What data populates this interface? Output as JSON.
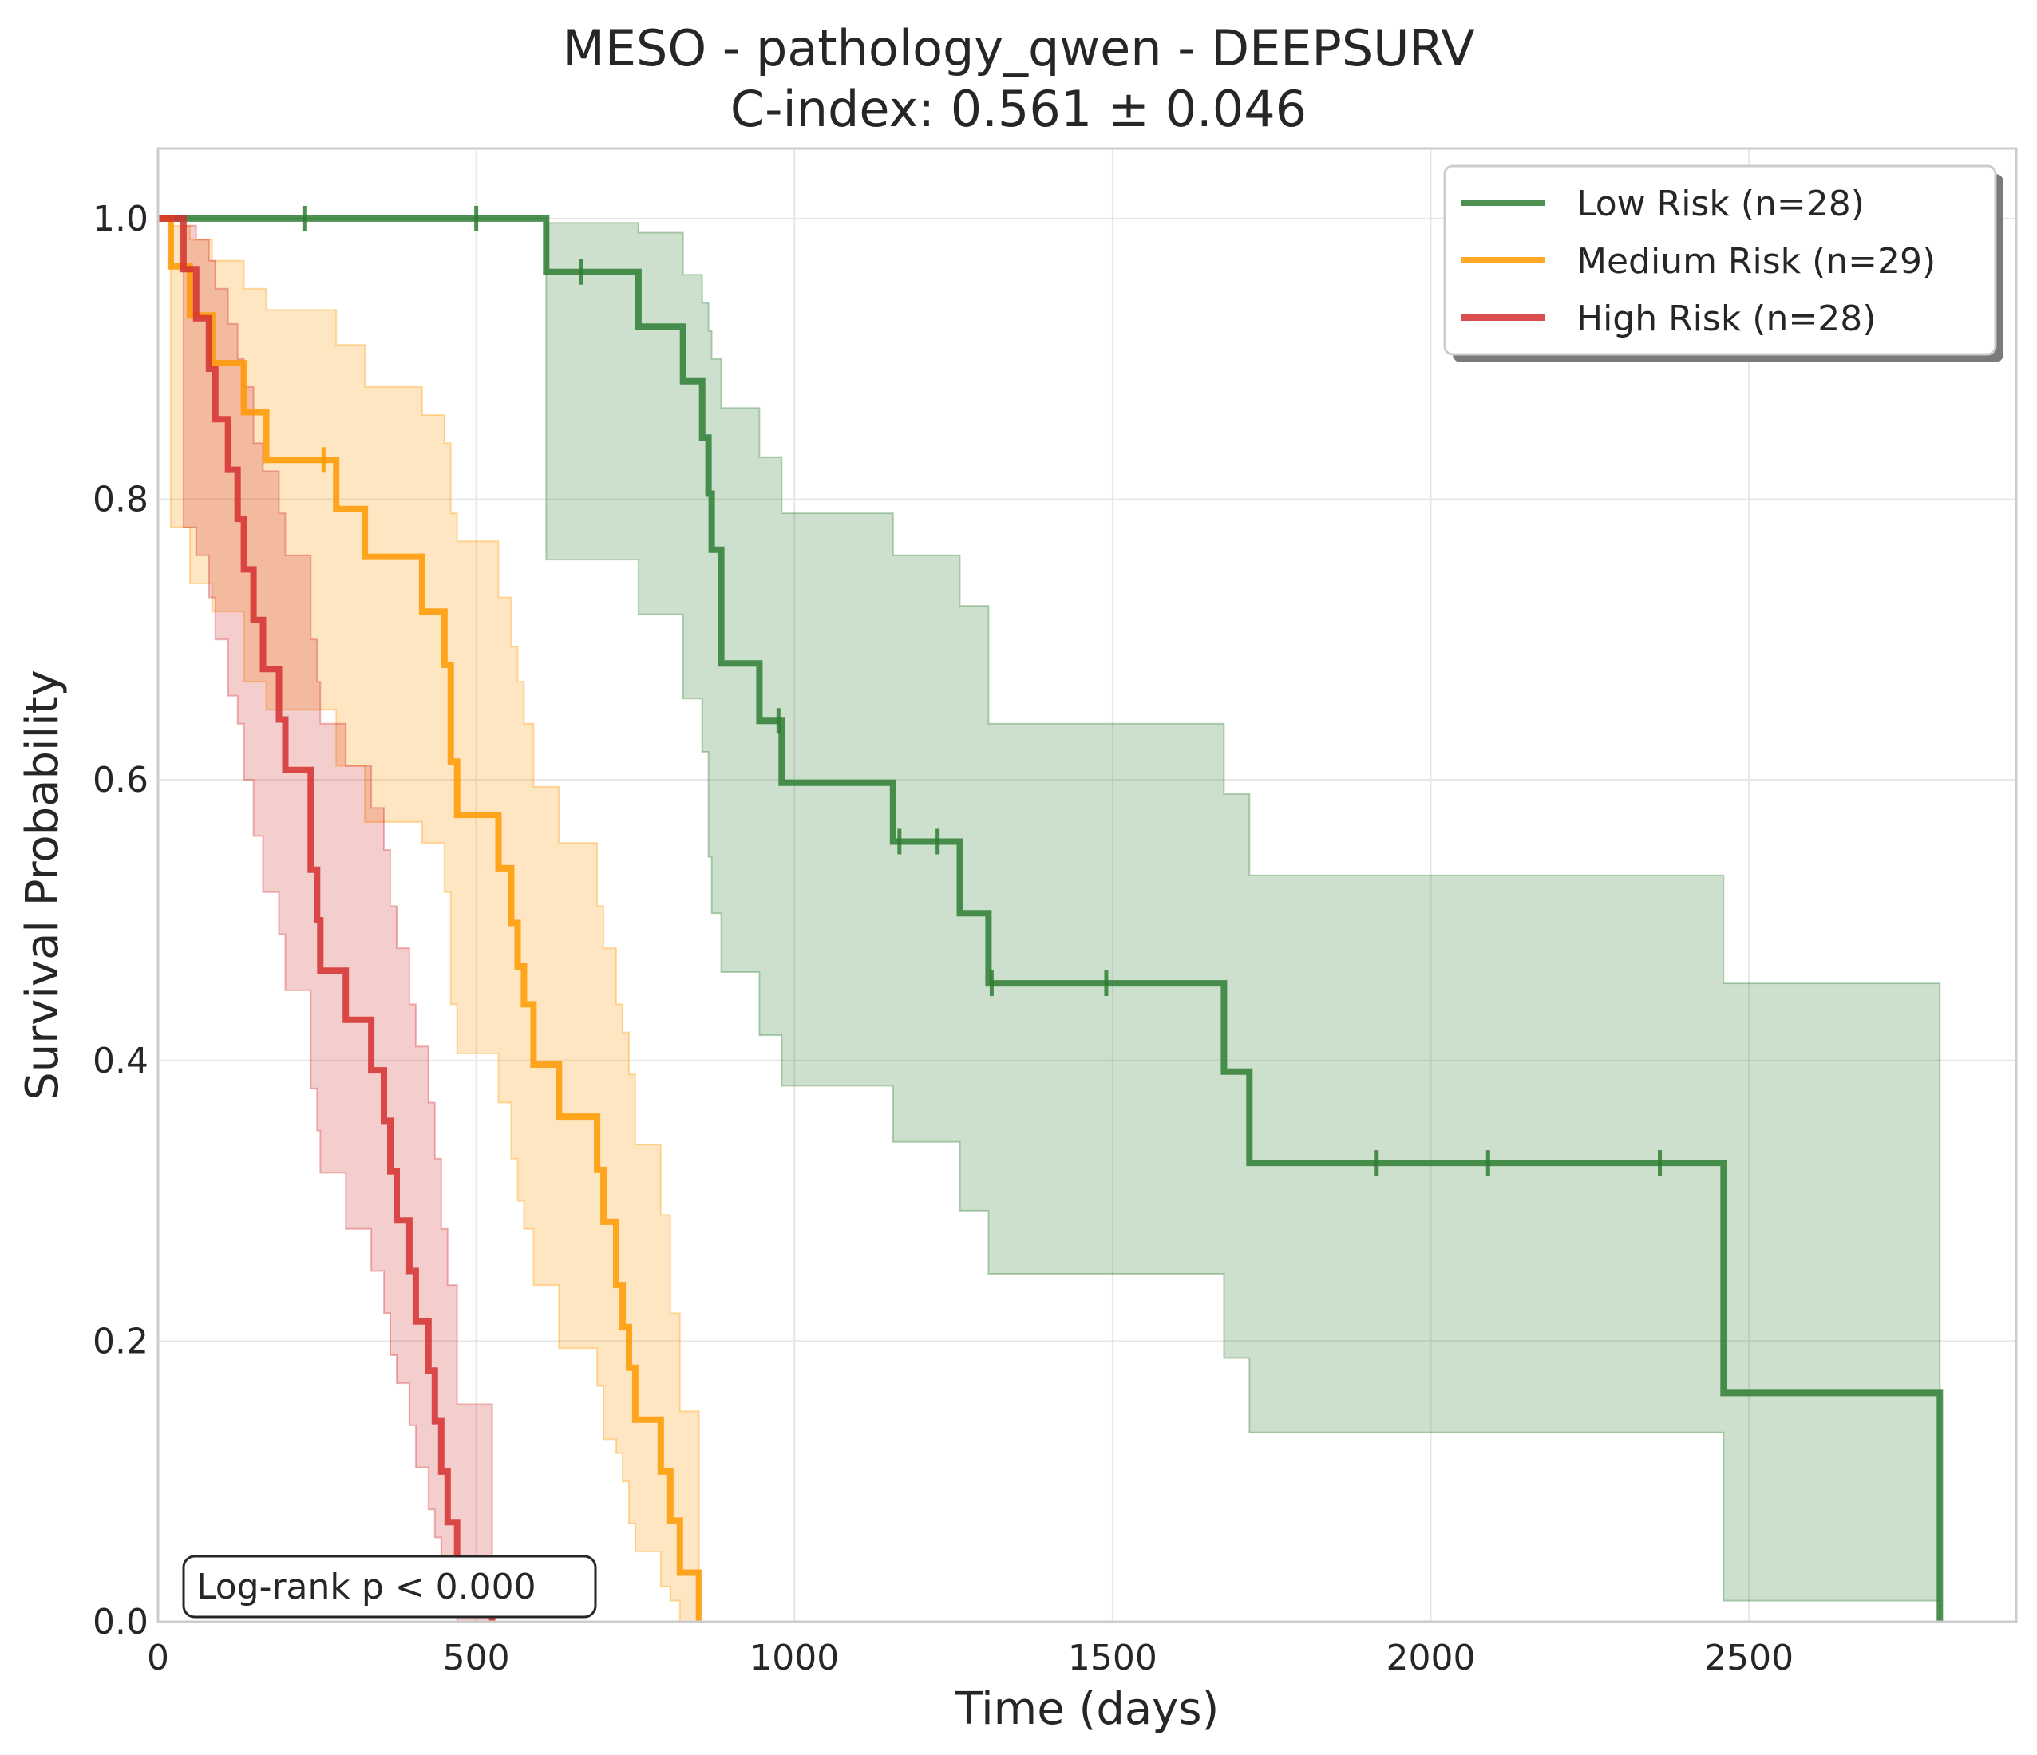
{
  "chart_data": {
    "type": "line",
    "subtype": "kaplan-meier",
    "title_line1": "MESO - pathology_qwen - DEEPSURV",
    "title_line2": "C-index: 0.561 ± 0.046",
    "xlabel": "Time (days)",
    "ylabel": "Survival Probability",
    "xlim": [
      0,
      2920
    ],
    "ylim": [
      0,
      1.05
    ],
    "xticks": [
      0,
      500,
      1000,
      1500,
      2000,
      2500
    ],
    "yticks": [
      0.0,
      0.2,
      0.4,
      0.6,
      0.8,
      1.0
    ],
    "xtick_labels": [
      "0",
      "500",
      "1000",
      "1500",
      "2000",
      "2500"
    ],
    "ytick_labels": [
      "0.0",
      "0.2",
      "0.4",
      "0.6",
      "0.8",
      "1.0"
    ],
    "grid": true,
    "legend_position": "top-right",
    "annotation": "Log-rank p < 0.000",
    "series": [
      {
        "name": "Low Risk (n=28)",
        "color": "#2e7d32",
        "steps": [
          [
            0,
            1.0
          ],
          [
            610,
            0.962
          ],
          [
            755,
            0.923
          ],
          [
            825,
            0.884
          ],
          [
            855,
            0.844
          ],
          [
            865,
            0.804
          ],
          [
            870,
            0.764
          ],
          [
            885,
            0.683
          ],
          [
            945,
            0.642
          ],
          [
            980,
            0.598
          ],
          [
            1155,
            0.556
          ],
          [
            1260,
            0.505
          ],
          [
            1305,
            0.455
          ],
          [
            1675,
            0.392
          ],
          [
            1715,
            0.327
          ],
          [
            2460,
            0.163
          ],
          [
            2800,
            0.0
          ]
        ],
        "censored": [
          [
            230,
            1.0
          ],
          [
            500,
            1.0
          ],
          [
            665,
            0.962
          ],
          [
            975,
            0.642
          ],
          [
            1165,
            0.556
          ],
          [
            1225,
            0.556
          ],
          [
            1310,
            0.455
          ],
          [
            1490,
            0.455
          ],
          [
            1915,
            0.327
          ],
          [
            2090,
            0.327
          ],
          [
            2360,
            0.327
          ]
        ],
        "ci": [
          [
            0,
            1.0,
            1.0
          ],
          [
            610,
            0.757,
            0.997
          ],
          [
            755,
            0.718,
            0.99
          ],
          [
            825,
            0.658,
            0.96
          ],
          [
            855,
            0.62,
            0.94
          ],
          [
            865,
            0.545,
            0.92
          ],
          [
            870,
            0.505,
            0.9
          ],
          [
            885,
            0.463,
            0.865
          ],
          [
            945,
            0.418,
            0.83
          ],
          [
            980,
            0.382,
            0.79
          ],
          [
            1155,
            0.342,
            0.76
          ],
          [
            1260,
            0.293,
            0.724
          ],
          [
            1305,
            0.248,
            0.64
          ],
          [
            1675,
            0.188,
            0.59
          ],
          [
            1715,
            0.135,
            0.532
          ],
          [
            2460,
            0.015,
            0.455
          ],
          [
            2800,
            0.0,
            0.0
          ]
        ]
      },
      {
        "name": "Medium Risk (n=29)",
        "color": "#ff9800",
        "steps": [
          [
            0,
            1.0
          ],
          [
            20,
            0.966
          ],
          [
            50,
            0.931
          ],
          [
            85,
            0.897
          ],
          [
            135,
            0.862
          ],
          [
            170,
            0.828
          ],
          [
            280,
            0.793
          ],
          [
            325,
            0.759
          ],
          [
            415,
            0.72
          ],
          [
            450,
            0.682
          ],
          [
            460,
            0.613
          ],
          [
            470,
            0.575
          ],
          [
            535,
            0.537
          ],
          [
            555,
            0.498
          ],
          [
            565,
            0.467
          ],
          [
            575,
            0.44
          ],
          [
            590,
            0.397
          ],
          [
            630,
            0.36
          ],
          [
            690,
            0.322
          ],
          [
            700,
            0.285
          ],
          [
            720,
            0.24
          ],
          [
            730,
            0.21
          ],
          [
            740,
            0.181
          ],
          [
            750,
            0.144
          ],
          [
            790,
            0.107
          ],
          [
            805,
            0.072
          ],
          [
            820,
            0.035
          ],
          [
            850,
            0.0
          ]
        ],
        "censored": [
          [
            260,
            0.828
          ]
        ],
        "ci": [
          [
            0,
            1.0,
            1.0
          ],
          [
            20,
            0.78,
            0.995
          ],
          [
            50,
            0.74,
            0.985
          ],
          [
            85,
            0.72,
            0.97
          ],
          [
            135,
            0.67,
            0.95
          ],
          [
            170,
            0.65,
            0.935
          ],
          [
            280,
            0.61,
            0.91
          ],
          [
            325,
            0.57,
            0.88
          ],
          [
            415,
            0.555,
            0.86
          ],
          [
            450,
            0.52,
            0.84
          ],
          [
            460,
            0.44,
            0.79
          ],
          [
            470,
            0.405,
            0.77
          ],
          [
            535,
            0.37,
            0.73
          ],
          [
            555,
            0.33,
            0.695
          ],
          [
            565,
            0.3,
            0.67
          ],
          [
            575,
            0.28,
            0.64
          ],
          [
            590,
            0.24,
            0.595
          ],
          [
            630,
            0.195,
            0.555
          ],
          [
            690,
            0.168,
            0.51
          ],
          [
            700,
            0.13,
            0.48
          ],
          [
            720,
            0.12,
            0.44
          ],
          [
            730,
            0.1,
            0.42
          ],
          [
            740,
            0.07,
            0.39
          ],
          [
            750,
            0.05,
            0.34
          ],
          [
            790,
            0.025,
            0.29
          ],
          [
            805,
            0.015,
            0.22
          ],
          [
            820,
            0.0,
            0.15
          ],
          [
            850,
            0.0,
            0.0
          ]
        ]
      },
      {
        "name": "High Risk (n=28)",
        "color": "#d32f2f",
        "steps": [
          [
            0,
            1.0
          ],
          [
            40,
            0.964
          ],
          [
            60,
            0.929
          ],
          [
            80,
            0.893
          ],
          [
            90,
            0.857
          ],
          [
            110,
            0.821
          ],
          [
            125,
            0.786
          ],
          [
            135,
            0.75
          ],
          [
            150,
            0.714
          ],
          [
            165,
            0.679
          ],
          [
            190,
            0.643
          ],
          [
            200,
            0.607
          ],
          [
            240,
            0.536
          ],
          [
            250,
            0.5
          ],
          [
            255,
            0.464
          ],
          [
            295,
            0.429
          ],
          [
            335,
            0.393
          ],
          [
            355,
            0.357
          ],
          [
            365,
            0.321
          ],
          [
            375,
            0.286
          ],
          [
            395,
            0.25
          ],
          [
            405,
            0.214
          ],
          [
            425,
            0.179
          ],
          [
            435,
            0.143
          ],
          [
            445,
            0.107
          ],
          [
            455,
            0.071
          ],
          [
            470,
            0.036
          ],
          [
            525,
            0.0
          ]
        ],
        "censored": [],
        "ci": [
          [
            0,
            1.0,
            1.0
          ],
          [
            40,
            0.78,
            0.995
          ],
          [
            60,
            0.76,
            0.985
          ],
          [
            80,
            0.73,
            0.97
          ],
          [
            90,
            0.7,
            0.95
          ],
          [
            110,
            0.66,
            0.925
          ],
          [
            125,
            0.64,
            0.9
          ],
          [
            135,
            0.6,
            0.88
          ],
          [
            150,
            0.56,
            0.84
          ],
          [
            165,
            0.52,
            0.82
          ],
          [
            190,
            0.49,
            0.79
          ],
          [
            200,
            0.45,
            0.76
          ],
          [
            240,
            0.38,
            0.7
          ],
          [
            250,
            0.35,
            0.67
          ],
          [
            255,
            0.32,
            0.64
          ],
          [
            295,
            0.28,
            0.61
          ],
          [
            335,
            0.25,
            0.58
          ],
          [
            355,
            0.22,
            0.55
          ],
          [
            365,
            0.19,
            0.51
          ],
          [
            375,
            0.17,
            0.48
          ],
          [
            395,
            0.14,
            0.44
          ],
          [
            405,
            0.11,
            0.41
          ],
          [
            425,
            0.08,
            0.37
          ],
          [
            435,
            0.06,
            0.33
          ],
          [
            445,
            0.04,
            0.28
          ],
          [
            455,
            0.02,
            0.24
          ],
          [
            470,
            0.0,
            0.155
          ],
          [
            525,
            0.0,
            0.0
          ]
        ]
      }
    ]
  }
}
